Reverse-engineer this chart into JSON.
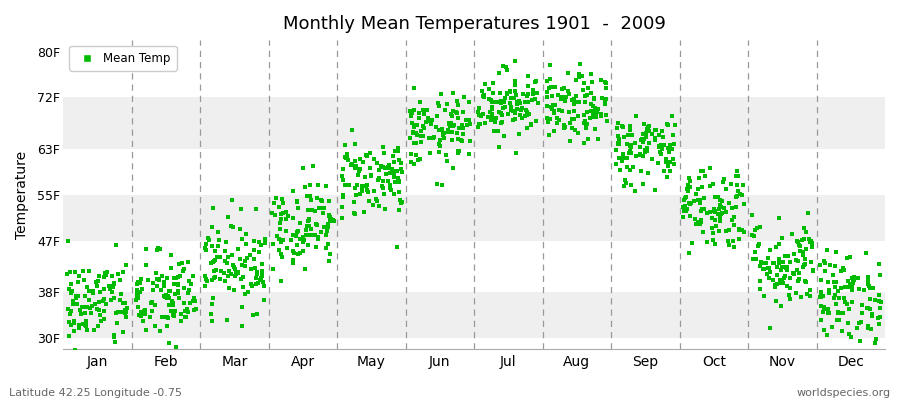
{
  "title": "Monthly Mean Temperatures 1901  -  2009",
  "ylabel": "Temperature",
  "xlabel_months": [
    "Jan",
    "Feb",
    "Mar",
    "Apr",
    "May",
    "Jun",
    "Jul",
    "Aug",
    "Sep",
    "Oct",
    "Nov",
    "Dec"
  ],
  "ytick_labels": [
    "30F",
    "38F",
    "47F",
    "55F",
    "63F",
    "72F",
    "80F"
  ],
  "ytick_values": [
    30,
    38,
    47,
    55,
    63,
    72,
    80
  ],
  "ylim": [
    28,
    82
  ],
  "dot_color": "#00BB00",
  "bg_color": "#FFFFFF",
  "band_color_light": "#EFEFEF",
  "band_color_white": "#FFFFFF",
  "vline_color": "#999999",
  "footer_left": "Latitude 42.25 Longitude -0.75",
  "footer_right": "worldspecies.org",
  "legend_label": "Mean Temp",
  "n_years": 109,
  "monthly_means_F": [
    36,
    37,
    43,
    50,
    58,
    66,
    71,
    70,
    63,
    53,
    43,
    37
  ],
  "monthly_stds_F": [
    4.0,
    4.0,
    4.0,
    3.8,
    3.5,
    3.2,
    3.0,
    3.0,
    3.2,
    3.8,
    4.0,
    4.0
  ],
  "seed": 42
}
